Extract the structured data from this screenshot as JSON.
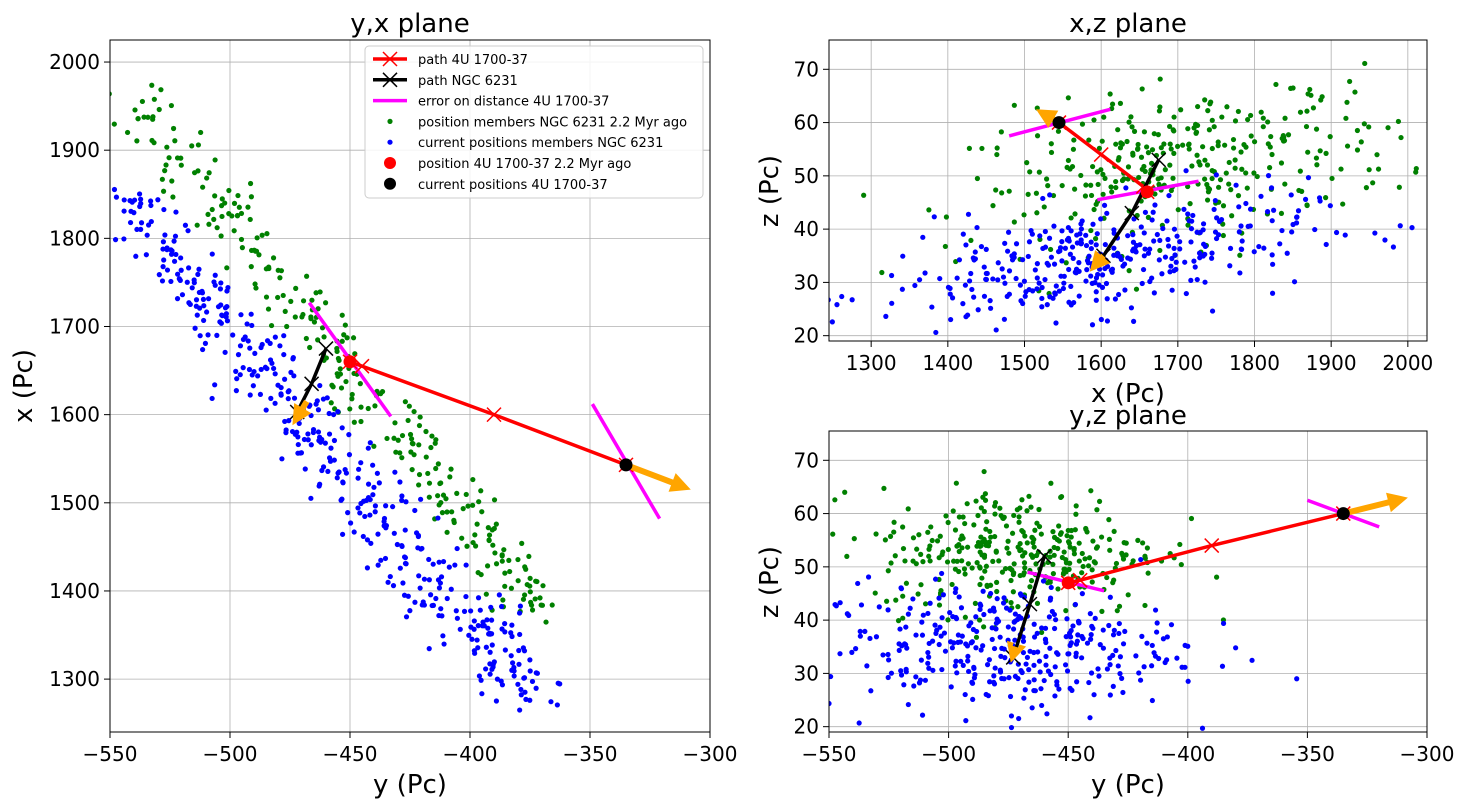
{
  "chart_data": [
    {
      "id": "yx",
      "type": "scatter",
      "title": "y,x plane",
      "xlabel": "y (Pc)",
      "ylabel": "x (Pc)",
      "xlim": [
        -550,
        -300
      ],
      "ylim": [
        1240,
        2025
      ],
      "xticks": [
        -550,
        -500,
        -450,
        -400,
        -350,
        -300
      ],
      "yticks": [
        1300,
        1400,
        1500,
        1600,
        1700,
        1800,
        1900,
        2000
      ],
      "grid": true,
      "legend_position": "top-right",
      "green_band": {
        "from": [
          -540,
          1960
        ],
        "to": [
          -368,
          1370
        ],
        "n": 280,
        "spread": 7,
        "jitter": 12
      },
      "blue_band": {
        "from": [
          -545,
          1850
        ],
        "to": [
          -378,
          1285
        ],
        "n": 420,
        "spread": 9,
        "jitter": 14
      },
      "path_4u": [
        [
          -335,
          1543
        ],
        [
          -390,
          1600
        ],
        [
          -445,
          1655
        ],
        [
          -450,
          1660
        ]
      ],
      "path_ngc": [
        [
          -460,
          1675
        ],
        [
          -466,
          1635
        ],
        [
          -472,
          1603
        ]
      ],
      "error_bars": [
        [
          [
            -349,
            1612
          ],
          [
            -321,
            1482
          ]
        ],
        [
          [
            -467,
            1727
          ],
          [
            -433,
            1598
          ]
        ]
      ],
      "current_4u": [
        -335,
        1543
      ],
      "past_4u": [
        -450,
        1660
      ],
      "arrow_4u": {
        "from": [
          -335,
          1543
        ],
        "to": [
          -308,
          1515
        ]
      },
      "arrow_ngc": {
        "from": [
          -468,
          1615
        ],
        "to": [
          -474,
          1588
        ]
      }
    },
    {
      "id": "xz",
      "type": "scatter",
      "title": "x,z plane",
      "xlabel": "x (Pc)",
      "ylabel": "z (Pc)",
      "xlim": [
        1245,
        2025
      ],
      "ylim": [
        19,
        75.5
      ],
      "xticks": [
        1300,
        1400,
        1500,
        1600,
        1700,
        1800,
        1900,
        2000
      ],
      "yticks": [
        20,
        30,
        40,
        50,
        60,
        70
      ],
      "grid": true,
      "green_cloud": {
        "cx": 1710,
        "cy": 52,
        "sx": 140,
        "sy": 7,
        "slope": 0.02,
        "n": 330
      },
      "blue_cloud": {
        "cx": 1590,
        "cy": 34,
        "sx": 140,
        "sy": 5,
        "slope": 0.02,
        "n": 360
      },
      "path_4u": [
        [
          1545,
          60
        ],
        [
          1600,
          54
        ],
        [
          1655,
          48
        ],
        [
          1660,
          47
        ]
      ],
      "path_ngc": [
        [
          1675,
          53
        ],
        [
          1640,
          43
        ],
        [
          1603,
          35
        ]
      ],
      "error_bars": [
        [
          [
            1480,
            57.5
          ],
          [
            1612,
            62.5
          ]
        ],
        [
          [
            1595,
            45.5
          ],
          [
            1727,
            49
          ]
        ]
      ],
      "current_4u": [
        1545,
        60
      ],
      "past_4u": [
        1660,
        47
      ],
      "arrow_4u": {
        "from": [
          1545,
          60
        ],
        "to": [
          1515,
          62.5
        ]
      },
      "arrow_ngc": {
        "from": [
          1603,
          35
        ],
        "to": [
          1585,
          32
        ]
      }
    },
    {
      "id": "yz",
      "type": "scatter",
      "title": "y,z plane",
      "xlabel": "y (Pc)",
      "ylabel": "z (Pc)",
      "xlim": [
        -550,
        -300
      ],
      "ylim": [
        19,
        75.5
      ],
      "xticks": [
        -550,
        -500,
        -450,
        -400,
        -350,
        -300
      ],
      "yticks": [
        20,
        30,
        40,
        50,
        60,
        70
      ],
      "grid": true,
      "green_cloud": {
        "cx": -470,
        "cy": 53,
        "sx": 30,
        "sy": 6,
        "slope": 0.0,
        "n": 330
      },
      "blue_cloud": {
        "cx": -480,
        "cy": 35,
        "sx": 38,
        "sy": 6,
        "slope": 0.0,
        "n": 360
      },
      "path_4u": [
        [
          -335,
          60
        ],
        [
          -390,
          54
        ],
        [
          -445,
          47.5
        ],
        [
          -450,
          47
        ]
      ],
      "path_ngc": [
        [
          -460,
          52
        ],
        [
          -466,
          43
        ],
        [
          -473,
          33
        ]
      ],
      "error_bars": [
        [
          [
            -350,
            62.5
          ],
          [
            -320,
            57.5
          ]
        ],
        [
          [
            -467,
            49
          ],
          [
            -435,
            45.5
          ]
        ]
      ],
      "current_4u": [
        -335,
        60
      ],
      "past_4u": [
        -450,
        47
      ],
      "arrow_4u": {
        "from": [
          -335,
          60
        ],
        "to": [
          -308,
          63
        ]
      },
      "arrow_ngc": {
        "from": [
          -472,
          35
        ],
        "to": [
          -474,
          32
        ]
      }
    }
  ],
  "legend": [
    {
      "label": "path 4U 1700-37",
      "kind": "line-x",
      "color": "#ff0000"
    },
    {
      "label": "path NGC 6231",
      "kind": "line-x",
      "color": "#000000"
    },
    {
      "label": "error on distance 4U 1700-37",
      "kind": "line",
      "color": "#ff00ff"
    },
    {
      "label": "position members NGC 6231 2.2 Myr ago",
      "kind": "dot-small",
      "color": "#008000"
    },
    {
      "label": "current positions members NGC 6231",
      "kind": "dot-small",
      "color": "#0000ff"
    },
    {
      "label": "position 4U 1700-37 2.2 Myr ago",
      "kind": "dot-big",
      "color": "#ff0000"
    },
    {
      "label": "current positions 4U 1700-37",
      "kind": "dot-big",
      "color": "#000000"
    }
  ],
  "colors": {
    "green": "#008000",
    "blue": "#0000ff",
    "red": "#ff0000",
    "black": "#000000",
    "magenta": "#ff00ff",
    "orange": "#ffa500"
  }
}
